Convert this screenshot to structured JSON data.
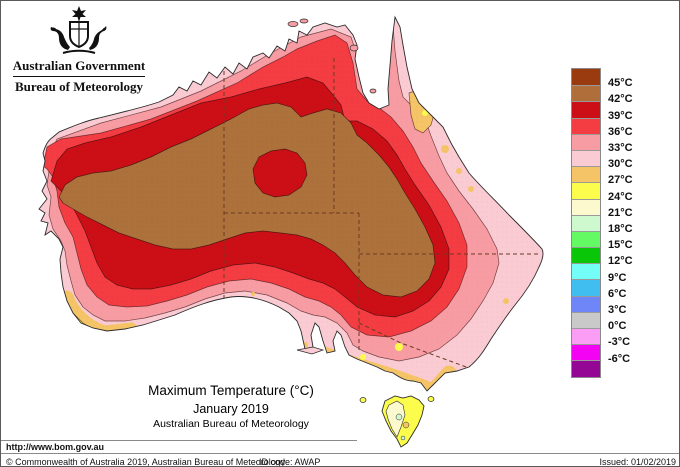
{
  "header": {
    "agency": "Australian Government",
    "bureau": "Bureau of Meteorology"
  },
  "title": {
    "line1": "Maximum Temperature (°C)",
    "line2": "January 2019",
    "line3": "Australian Bureau of Meteorology"
  },
  "legend": {
    "units": "°C",
    "entries": [
      {
        "color": "#9A3B0F",
        "boundary_label": "45°C"
      },
      {
        "color": "#B06E3B",
        "boundary_label": "42°C"
      },
      {
        "color": "#CC0F16",
        "boundary_label": "39°C"
      },
      {
        "color": "#F43C43",
        "boundary_label": "36°C"
      },
      {
        "color": "#F89CA3",
        "boundary_label": "33°C"
      },
      {
        "color": "#FBCBD3",
        "boundary_label": "30°C"
      },
      {
        "color": "#F5C467",
        "boundary_label": "27°C"
      },
      {
        "color": "#FCFC4C",
        "boundary_label": "24°C"
      },
      {
        "color": "#FDF9CE",
        "boundary_label": "21°C"
      },
      {
        "color": "#CEF8CE",
        "boundary_label": "18°C"
      },
      {
        "color": "#63FA63",
        "boundary_label": "15°C"
      },
      {
        "color": "#09C609",
        "boundary_label": "12°C"
      },
      {
        "color": "#73FEF8",
        "boundary_label": "9°C"
      },
      {
        "color": "#3FBEEF",
        "boundary_label": "6°C"
      },
      {
        "color": "#6E86F8",
        "boundary_label": "3°C"
      },
      {
        "color": "#C9C9C9",
        "boundary_label": "0°C"
      },
      {
        "color": "#FB9DF4",
        "boundary_label": "-3°C"
      },
      {
        "color": "#F402F4",
        "boundary_label": "-6°C"
      },
      {
        "color": "#940794",
        "boundary_label": ""
      }
    ]
  },
  "map": {
    "band_colors": {
      "t30_33": "#FBCBD3",
      "t33_36": "#F89CA3",
      "t36_39": "#F43C43",
      "t39_42": "#CC0F16",
      "t42_45": "#AD713C",
      "t27_30": "#F5C467",
      "t24_27": "#FCFC4C",
      "t21_24": "#FDF9CE",
      "t18_21": "#CEF8CE"
    },
    "coast_color": "#2b2b2b",
    "border_color": "#6b3a22"
  },
  "footer": {
    "url": "http://www.bom.gov.au",
    "copyright": "© Commonwealth of Australia 2019, Australian Bureau of Meteorology",
    "id_code": "ID code: AWAP",
    "issued": "Issued: 01/02/2019"
  }
}
